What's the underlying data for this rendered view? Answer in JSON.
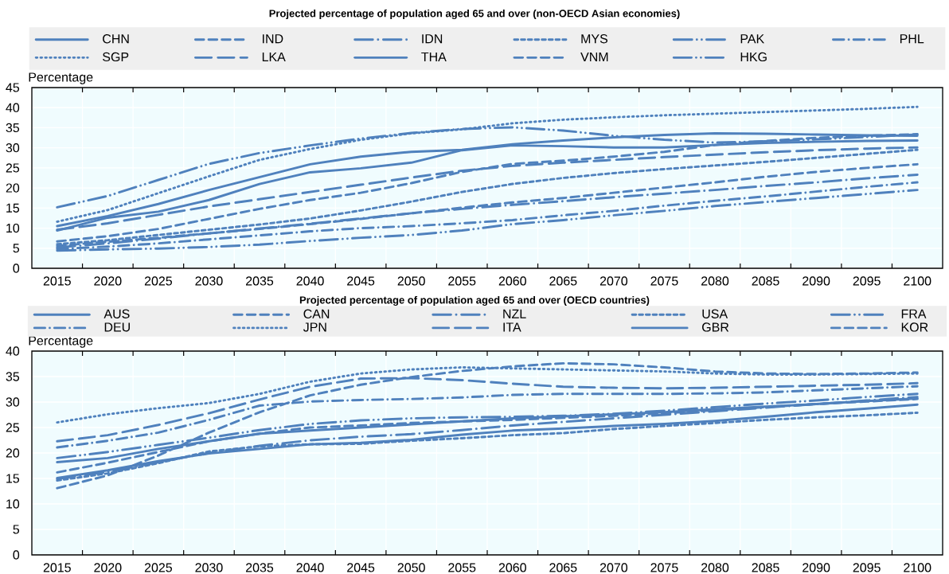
{
  "chart_data": [
    {
      "type": "line",
      "title": "Projected percentage of population aged 65 and over (non-OECD Asian economies)",
      "ylabel": "Percentage",
      "categories": [
        "2015",
        "2020",
        "2025",
        "2030",
        "2035",
        "2040",
        "2045",
        "2050",
        "2055",
        "2060",
        "2065",
        "2070",
        "2075",
        "2080",
        "2085",
        "2090",
        "2095",
        "2100"
      ],
      "ylim": [
        0,
        45
      ],
      "yticks": [
        0,
        5,
        10,
        15,
        20,
        25,
        30,
        35,
        40,
        45
      ],
      "grid": true,
      "legend": "top",
      "series": [
        {
          "name": "CHN",
          "color": "#4f81bd",
          "line_style": "solid",
          "values": [
            9.4,
            12.6,
            14.1,
            17.0,
            21.0,
            23.9,
            24.9,
            26.3,
            29.4,
            30.6,
            30.4,
            30.1,
            30.1,
            30.7,
            31.2,
            31.5,
            31.7,
            31.8
          ]
        },
        {
          "name": "IND",
          "color": "#4f81bd",
          "line_style": "dashed",
          "values": [
            5.6,
            6.6,
            7.6,
            8.7,
            9.8,
            11.0,
            12.3,
            13.7,
            15.1,
            16.4,
            17.5,
            18.8,
            20.1,
            21.4,
            22.8,
            24.0,
            25.0,
            25.9
          ]
        },
        {
          "name": "IDN",
          "color": "#4f81bd",
          "line_style": "longdashdot",
          "values": [
            5.2,
            6.2,
            7.4,
            8.7,
            9.9,
            11.1,
            12.4,
            13.7,
            14.8,
            15.8,
            16.7,
            17.7,
            18.6,
            19.5,
            20.5,
            21.4,
            22.4,
            23.3
          ]
        },
        {
          "name": "MYS",
          "color": "#4f81bd",
          "line_style": "shortdash",
          "values": [
            6.0,
            7.0,
            8.3,
            9.6,
            10.9,
            12.4,
            14.4,
            16.6,
            19.0,
            21.0,
            22.5,
            23.7,
            24.7,
            25.6,
            26.5,
            27.5,
            28.5,
            29.5
          ]
        },
        {
          "name": "PAK",
          "color": "#4f81bd",
          "line_style": "longdashdotdot",
          "values": [
            4.4,
            4.7,
            4.9,
            5.3,
            5.9,
            6.8,
            7.6,
            8.3,
            9.4,
            11.0,
            12.0,
            13.2,
            14.3,
            15.5,
            16.5,
            17.5,
            18.5,
            19.5
          ]
        },
        {
          "name": "PHL",
          "color": "#4f81bd",
          "line_style": "dashdot",
          "values": [
            4.8,
            5.4,
            6.2,
            7.2,
            8.2,
            9.2,
            10.0,
            10.5,
            11.2,
            12.0,
            13.2,
            14.3,
            15.6,
            16.8,
            17.9,
            19.1,
            20.3,
            21.4
          ]
        },
        {
          "name": "SGP",
          "color": "#4f81bd",
          "line_style": "dotted",
          "values": [
            11.6,
            14.5,
            18.7,
            22.9,
            27.0,
            29.7,
            32.0,
            33.6,
            34.6,
            36.1,
            37.0,
            37.6,
            38.1,
            38.5,
            38.9,
            39.3,
            39.7,
            40.2
          ]
        },
        {
          "name": "LKA",
          "color": "#4f81bd",
          "line_style": "longdash",
          "values": [
            9.6,
            11.2,
            13.3,
            15.4,
            17.2,
            19.0,
            20.8,
            22.6,
            24.3,
            25.5,
            26.3,
            27.0,
            27.7,
            28.3,
            28.9,
            29.4,
            29.8,
            30.1
          ]
        },
        {
          "name": "THA",
          "color": "#4f81bd",
          "line_style": "solid",
          "values": [
            10.5,
            13.0,
            16.0,
            19.5,
            22.7,
            25.9,
            27.8,
            29.0,
            29.5,
            30.9,
            31.8,
            32.6,
            33.2,
            33.6,
            33.5,
            33.3,
            33.1,
            33.0
          ]
        },
        {
          "name": "VNM",
          "color": "#4f81bd",
          "line_style": "dashed",
          "values": [
            6.7,
            8.0,
            9.8,
            12.3,
            14.8,
            17.0,
            18.8,
            21.2,
            24.0,
            26.0,
            26.8,
            27.8,
            29.0,
            30.7,
            31.7,
            32.5,
            33.0,
            33.4
          ]
        },
        {
          "name": "HKG",
          "color": "#4f81bd",
          "line_style": "longdashdotdot",
          "values": [
            15.2,
            18.0,
            22.0,
            26.0,
            28.7,
            30.6,
            32.3,
            33.7,
            34.7,
            35.1,
            34.3,
            33.0,
            32.0,
            31.3,
            31.6,
            32.1,
            32.7,
            33.3
          ]
        }
      ]
    },
    {
      "type": "line",
      "title": "Projected percentage of population aged 65 and over (OECD countries)",
      "ylabel": "Percentage",
      "categories": [
        "2015",
        "2020",
        "2025",
        "2030",
        "2035",
        "2040",
        "2045",
        "2050",
        "2055",
        "2060",
        "2065",
        "2070",
        "2075",
        "2080",
        "2085",
        "2090",
        "2095",
        "2100"
      ],
      "ylim": [
        0,
        40
      ],
      "yticks": [
        0,
        5,
        10,
        15,
        20,
        25,
        30,
        35,
        40
      ],
      "grid": true,
      "legend": "top",
      "series": [
        {
          "name": "AUS",
          "color": "#4f81bd",
          "line_style": "solid",
          "values": [
            15.1,
            16.6,
            18.4,
            19.9,
            20.8,
            21.7,
            22.0,
            22.6,
            23.6,
            24.4,
            24.8,
            25.3,
            25.7,
            26.3,
            27.1,
            28.0,
            28.7,
            29.5
          ]
        },
        {
          "name": "CAN",
          "color": "#4f81bd",
          "line_style": "dashed",
          "values": [
            16.2,
            18.1,
            20.2,
            22.3,
            23.8,
            25.0,
            25.4,
            25.9,
            26.2,
            26.5,
            26.9,
            27.3,
            27.8,
            28.4,
            29.0,
            29.6,
            30.1,
            30.6
          ]
        },
        {
          "name": "NZL",
          "color": "#4f81bd",
          "line_style": "longdashdot",
          "values": [
            14.9,
            16.3,
            18.2,
            20.0,
            21.4,
            22.5,
            23.2,
            23.7,
            24.5,
            25.4,
            26.1,
            26.8,
            27.5,
            28.2,
            28.9,
            29.6,
            30.3,
            31.0
          ]
        },
        {
          "name": "USA",
          "color": "#4f81bd",
          "line_style": "shortdash",
          "values": [
            14.6,
            16.0,
            18.0,
            20.3,
            21.3,
            21.7,
            21.8,
            22.4,
            22.9,
            23.5,
            23.9,
            24.7,
            25.3,
            25.9,
            26.5,
            27.0,
            27.4,
            27.9
          ]
        },
        {
          "name": "FRA",
          "color": "#4f81bd",
          "line_style": "longdashdotdot",
          "values": [
            19.0,
            20.2,
            21.6,
            23.0,
            24.5,
            25.7,
            26.4,
            26.8,
            27.0,
            27.1,
            27.3,
            27.7,
            28.3,
            29.0,
            29.7,
            30.3,
            31.0,
            31.6
          ]
        },
        {
          "name": "DEU",
          "color": "#4f81bd",
          "line_style": "dashdot",
          "values": [
            21.1,
            22.4,
            24.0,
            26.5,
            29.3,
            30.1,
            30.4,
            30.6,
            30.9,
            31.4,
            31.6,
            31.6,
            31.6,
            31.7,
            31.9,
            32.3,
            32.7,
            33.1
          ]
        },
        {
          "name": "JPN",
          "color": "#4f81bd",
          "line_style": "dotted",
          "values": [
            26.0,
            27.6,
            28.8,
            29.8,
            31.6,
            34.0,
            35.6,
            36.4,
            36.8,
            36.6,
            36.4,
            36.2,
            36.0,
            35.6,
            35.4,
            35.4,
            35.5,
            35.6
          ]
        },
        {
          "name": "ITA",
          "color": "#4f81bd",
          "line_style": "longdash",
          "values": [
            22.3,
            23.5,
            25.5,
            27.8,
            30.5,
            33.0,
            34.6,
            34.7,
            34.3,
            33.6,
            33.0,
            32.8,
            32.7,
            32.8,
            33.0,
            33.2,
            33.4,
            33.7
          ]
        },
        {
          "name": "GBR",
          "color": "#4f81bd",
          "line_style": "solid",
          "values": [
            18.2,
            19.0,
            20.8,
            22.3,
            23.8,
            24.4,
            25.0,
            25.6,
            26.2,
            26.8,
            27.2,
            27.6,
            28.0,
            28.6,
            29.1,
            29.6,
            30.2,
            30.7
          ]
        },
        {
          "name": "KOR",
          "color": "#4f81bd",
          "line_style": "dashed",
          "values": [
            13.1,
            15.6,
            19.5,
            24.0,
            28.0,
            31.3,
            33.4,
            34.9,
            36.1,
            37.0,
            37.6,
            37.4,
            36.8,
            36.0,
            35.6,
            35.5,
            35.6,
            35.8
          ]
        }
      ]
    }
  ]
}
